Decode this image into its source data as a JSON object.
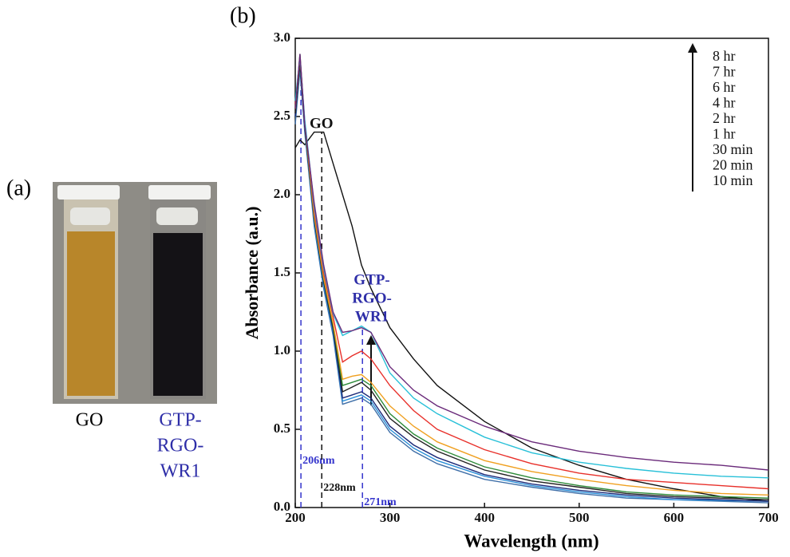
{
  "panel_a": {
    "label": "(a)",
    "captions": [
      [
        "GO"
      ],
      [
        "GTP-",
        "RGO-",
        "WR1"
      ]
    ]
  },
  "chart_data": {
    "type": "line",
    "panel_label": "(b)",
    "x_label": "Wavelength (nm)",
    "y_label": "Absorbance (a.u.)",
    "xlim": [
      200,
      700
    ],
    "xticks": [
      200,
      300,
      400,
      500,
      600,
      700
    ],
    "ylim": [
      0,
      3
    ],
    "yticks": [
      {
        "value": 0,
        "label": "0.0"
      },
      0.5,
      {
        "value": 1,
        "label": "1.0"
      },
      1.5,
      {
        "value": 2,
        "label": "2.0"
      },
      2.5,
      {
        "value": 3,
        "label": "3.0"
      }
    ],
    "x": [
      200,
      205,
      210,
      220,
      230,
      240,
      250,
      260,
      270,
      280,
      300,
      325,
      350,
      400,
      450,
      500,
      550,
      600,
      650,
      700
    ],
    "series": [
      {
        "name": "GO",
        "color": "#111111",
        "values": [
          2.3,
          2.35,
          2.32,
          2.4,
          2.4,
          2.2,
          2.0,
          1.8,
          1.55,
          1.4,
          1.15,
          0.95,
          0.78,
          0.55,
          0.38,
          0.27,
          0.18,
          0.12,
          0.07,
          0.04
        ]
      },
      {
        "name": "10 min",
        "color": "#3f6fa8",
        "values": [
          2.45,
          2.8,
          2.4,
          1.8,
          1.4,
          1.1,
          0.66,
          0.68,
          0.7,
          0.66,
          0.48,
          0.36,
          0.28,
          0.18,
          0.13,
          0.09,
          0.06,
          0.05,
          0.04,
          0.03
        ]
      },
      {
        "name": "20 min",
        "color": "#2a8fd8",
        "values": [
          2.5,
          2.82,
          2.42,
          1.82,
          1.42,
          1.12,
          0.68,
          0.7,
          0.72,
          0.68,
          0.5,
          0.38,
          0.3,
          0.2,
          0.14,
          0.1,
          0.07,
          0.05,
          0.045,
          0.04
        ]
      },
      {
        "name": "30 min",
        "color": "#1c2a78",
        "values": [
          2.5,
          2.84,
          2.43,
          1.84,
          1.44,
          1.14,
          0.7,
          0.72,
          0.74,
          0.7,
          0.52,
          0.4,
          0.32,
          0.21,
          0.15,
          0.11,
          0.08,
          0.06,
          0.05,
          0.04
        ]
      },
      {
        "name": "1 hr",
        "color": "#222222",
        "values": [
          2.52,
          2.85,
          2.44,
          1.85,
          1.45,
          1.15,
          0.74,
          0.77,
          0.8,
          0.75,
          0.57,
          0.45,
          0.36,
          0.24,
          0.17,
          0.13,
          0.09,
          0.07,
          0.06,
          0.05
        ]
      },
      {
        "name": "2 hr",
        "color": "#2e8b3a",
        "values": [
          2.55,
          2.9,
          2.45,
          1.86,
          1.46,
          1.17,
          0.78,
          0.8,
          0.82,
          0.78,
          0.6,
          0.47,
          0.38,
          0.26,
          0.19,
          0.14,
          0.1,
          0.08,
          0.07,
          0.06
        ]
      },
      {
        "name": "4 hr",
        "color": "#f0a020",
        "values": [
          2.55,
          2.88,
          2.46,
          1.87,
          1.47,
          1.18,
          0.82,
          0.84,
          0.85,
          0.8,
          0.65,
          0.52,
          0.42,
          0.3,
          0.23,
          0.18,
          0.14,
          0.11,
          0.09,
          0.08
        ]
      },
      {
        "name": "6 hr",
        "color": "#e8302a",
        "values": [
          2.58,
          2.88,
          2.47,
          1.9,
          1.5,
          1.22,
          0.93,
          0.97,
          1.0,
          0.95,
          0.78,
          0.62,
          0.5,
          0.37,
          0.28,
          0.22,
          0.18,
          0.16,
          0.14,
          0.12
        ]
      },
      {
        "name": "7 hr",
        "color": "#28c0d8",
        "values": [
          2.6,
          2.88,
          2.48,
          1.93,
          1.53,
          1.24,
          1.1,
          1.13,
          1.16,
          1.12,
          0.86,
          0.7,
          0.6,
          0.45,
          0.35,
          0.29,
          0.25,
          0.22,
          0.2,
          0.19
        ]
      },
      {
        "name": "8 hr",
        "color": "#6a2a7a",
        "values": [
          2.55,
          2.9,
          2.45,
          1.95,
          1.55,
          1.25,
          1.12,
          1.13,
          1.15,
          1.12,
          0.9,
          0.75,
          0.65,
          0.52,
          0.42,
          0.36,
          0.32,
          0.29,
          0.27,
          0.24
        ]
      }
    ],
    "annotation": [
      "GTP-",
      "RGO-",
      "WR1"
    ],
    "vlines": [
      {
        "x": 206,
        "label": "206nm",
        "color": "#3333cc"
      },
      {
        "x": 228,
        "label": "228nm",
        "color": "#111111"
      },
      {
        "x": 271,
        "label": "271nm",
        "color": "#3333cc"
      }
    ]
  }
}
